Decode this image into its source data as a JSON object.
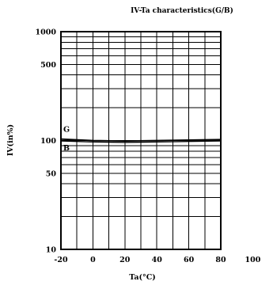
{
  "chart_data": {
    "type": "line",
    "title": "IV-Ta characteristics(G/B)",
    "xlabel": "Ta(°C)",
    "ylabel": "IV(in%)",
    "xlim": [
      -20,
      80
    ],
    "ylim": [
      10,
      1000
    ],
    "yscale": "log",
    "xticks": [
      -20,
      0,
      20,
      40,
      60,
      80,
      100
    ],
    "xtick_labels": [
      "-20",
      "0",
      "20",
      "40",
      "60",
      "80",
      "100"
    ],
    "yticks": [
      10,
      50,
      100,
      500,
      1000
    ],
    "ytick_labels": [
      "10",
      "50",
      "100",
      "500",
      "1000"
    ],
    "grid": true,
    "line_color": "#000000",
    "series": [
      {
        "name": "G",
        "x": [
          -20,
          0,
          20,
          40,
          60,
          80
        ],
        "y": [
          103,
          100,
          99,
          100,
          101,
          102
        ]
      },
      {
        "name": "B",
        "x": [
          -20,
          0,
          20,
          40,
          60,
          80
        ],
        "y": [
          99,
          97,
          96,
          97,
          98,
          99
        ]
      }
    ]
  }
}
